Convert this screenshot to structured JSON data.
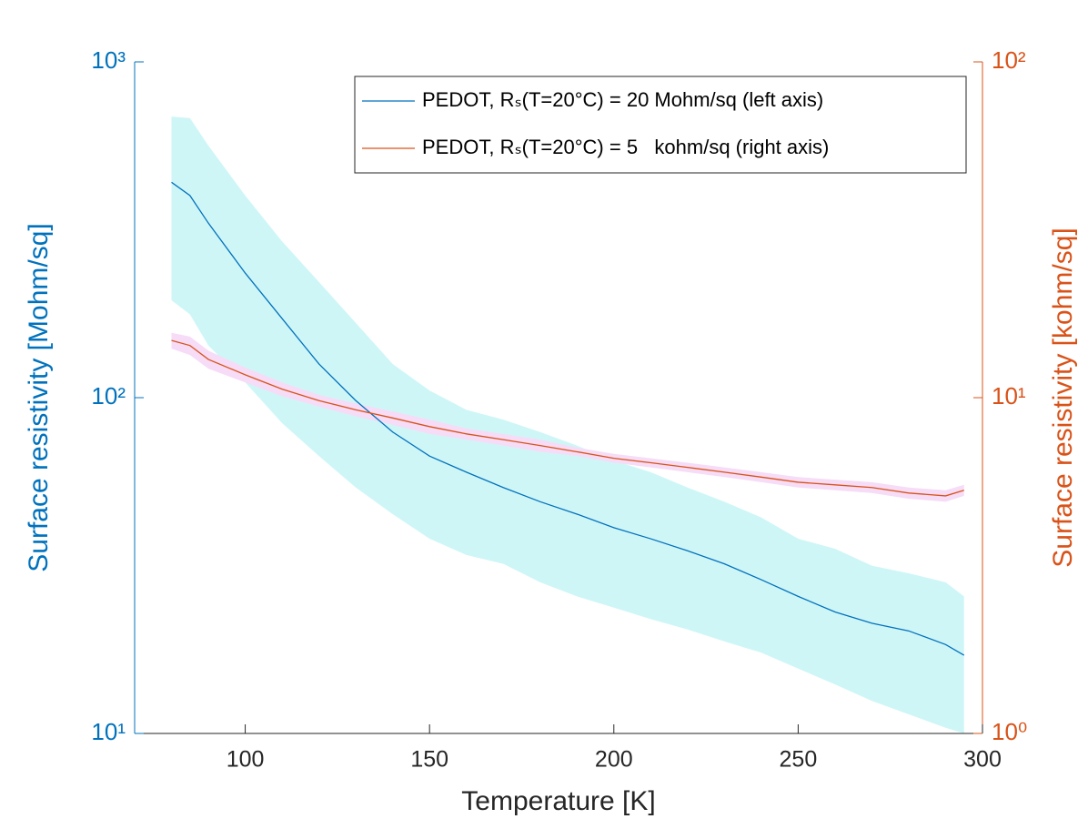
{
  "chart_data": {
    "type": "line",
    "xlabel": "Temperature [K]",
    "ylabel": "Surface resistivity [Mohm/sq]",
    "y2label": "Surface resistivity [kohm/sq]",
    "xlim": [
      70,
      300
    ],
    "xticks": [
      100,
      150,
      200,
      250,
      300
    ],
    "ylim": [
      10,
      1000
    ],
    "yticks": [
      {
        "value": 10,
        "label": "10¹"
      },
      {
        "value": 100,
        "label": "10²"
      },
      {
        "value": 1000,
        "label": "10³"
      }
    ],
    "y2lim": [
      1,
      100
    ],
    "y2ticks": [
      {
        "value": 1,
        "label": "10⁰"
      },
      {
        "value": 10,
        "label": "10¹"
      },
      {
        "value": 100,
        "label": "10²"
      }
    ],
    "ylog": true,
    "y2log": true,
    "legend": "top-right",
    "x": [
      80,
      85,
      90,
      100,
      110,
      120,
      130,
      140,
      150,
      160,
      170,
      180,
      190,
      200,
      210,
      220,
      230,
      240,
      250,
      260,
      270,
      280,
      290,
      295
    ],
    "series": [
      {
        "name": "PEDOT, Rₛ(T=20°C) = 20 Mohm/sq (left axis)",
        "color": "#0072bd",
        "band_color": "#cff6f7",
        "axis": "y",
        "values": [
          438,
          400,
          331,
          235,
          172,
          126,
          98,
          79,
          67,
          60,
          54,
          49,
          45,
          41,
          38,
          35,
          32,
          28.7,
          25.6,
          23,
          21.3,
          20.2,
          18.4,
          17.1
        ],
        "upper": [
          687,
          680,
          563,
          400,
          292,
          221,
          167,
          126,
          105,
          92,
          86,
          79,
          72,
          65,
          60,
          54,
          49,
          44,
          38,
          35.5,
          31.6,
          30,
          28.2,
          25.6
        ],
        "lower": [
          195,
          177,
          143,
          111,
          84,
          67,
          54,
          45,
          38,
          34,
          32,
          28.2,
          25.6,
          23.7,
          21.9,
          20.4,
          18.8,
          17.4,
          15.6,
          14,
          12.5,
          11.4,
          10.4,
          10
        ]
      },
      {
        "name": "PEDOT, Rₛ(T=20°C) = 5   kohm/sq (right axis)",
        "color": "#d95319",
        "band_color": "#f6dcf6",
        "axis": "y2",
        "values": [
          14.8,
          14.3,
          13,
          11.7,
          10.6,
          9.8,
          9.2,
          8.7,
          8.2,
          7.8,
          7.5,
          7.2,
          6.9,
          6.6,
          6.4,
          6.2,
          6.0,
          5.8,
          5.6,
          5.5,
          5.4,
          5.2,
          5.1,
          5.3
        ],
        "upper": [
          15.6,
          15.2,
          13.8,
          12.3,
          11.1,
          10.2,
          9.6,
          9.1,
          8.6,
          8.1,
          7.8,
          7.5,
          7.1,
          6.8,
          6.6,
          6.4,
          6.2,
          6.0,
          5.8,
          5.7,
          5.6,
          5.4,
          5.3,
          5.5
        ],
        "lower": [
          14.0,
          13.4,
          12.2,
          11.1,
          10.1,
          9.4,
          8.8,
          8.3,
          7.8,
          7.5,
          7.2,
          6.9,
          6.7,
          6.4,
          6.2,
          6.0,
          5.8,
          5.6,
          5.4,
          5.3,
          5.2,
          5.0,
          4.9,
          5.1
        ]
      }
    ]
  }
}
